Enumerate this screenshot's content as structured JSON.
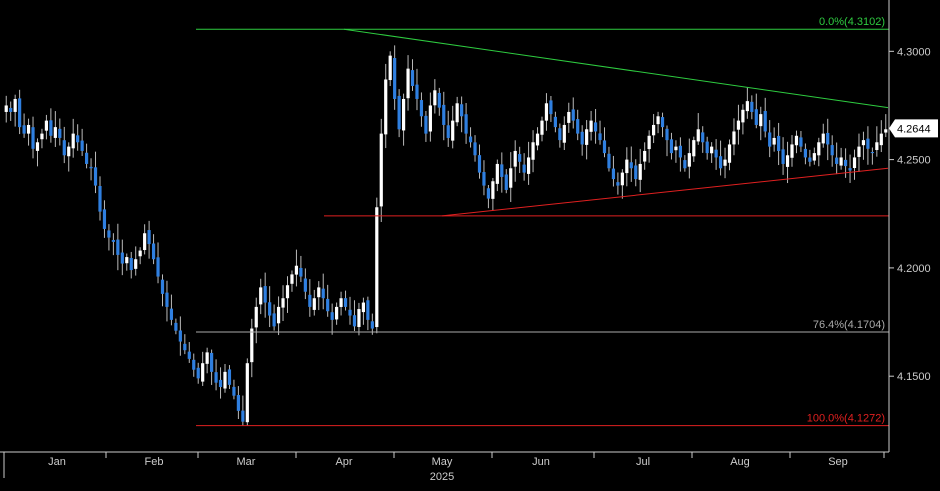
{
  "chart_data": {
    "type": "candlestick",
    "title": "",
    "xlabel": "",
    "ylabel": "",
    "year_label": "2025",
    "x_ticks": [
      "Jan",
      "Feb",
      "Mar",
      "Apr",
      "May",
      "Jun",
      "Jul",
      "Aug",
      "Sep"
    ],
    "y_ticks": [
      "4.1500",
      "4.2000",
      "4.2500",
      "4.3000"
    ],
    "ylim": [
      4.115,
      4.32
    ],
    "last_price": 4.2644,
    "last_price_label": "4.2644",
    "grid": false,
    "fib_levels": [
      {
        "label": "0.0%(4.3102)",
        "value": 4.3102,
        "color": "#2ecc40"
      },
      {
        "label": "76.4%(4.1704)",
        "value": 4.1704,
        "color": "#aaaaaa"
      },
      {
        "label": "100.0%(4.1272)",
        "value": 4.1272,
        "color": "#e02020"
      }
    ],
    "horizontal_lines": [
      {
        "value": 4.224,
        "start": "Apr",
        "color": "#e02020"
      }
    ],
    "trendlines": [
      {
        "from": [
          "Apr",
          4.3102
        ],
        "to": [
          "Sep end",
          4.274
        ],
        "color": "#2ecc40"
      },
      {
        "from": [
          "May",
          4.224
        ],
        "to": [
          "Sep end",
          4.246
        ],
        "color": "#e02020"
      }
    ],
    "colors": {
      "up": "#ffffff",
      "down": "#2f7fe0",
      "wick": "#bbbbbb",
      "background": "#000000",
      "axis": "#cccccc"
    },
    "closes": [
      4.275,
      4.272,
      4.278,
      4.265,
      4.262,
      4.266,
      4.255,
      4.258,
      4.262,
      4.268,
      4.261,
      4.265,
      4.26,
      4.252,
      4.256,
      4.262,
      4.258,
      4.254,
      4.248,
      4.246,
      4.238,
      4.226,
      4.218,
      4.214,
      4.212,
      4.206,
      4.202,
      4.205,
      4.199,
      4.204,
      4.208,
      4.216,
      4.211,
      4.204,
      4.196,
      4.188,
      4.182,
      4.176,
      4.171,
      4.166,
      4.162,
      4.158,
      4.153,
      4.149,
      4.156,
      4.161,
      4.152,
      4.147,
      4.145,
      4.152,
      4.146,
      4.141,
      4.134,
      4.129,
      4.156,
      4.172,
      4.182,
      4.191,
      4.184,
      4.178,
      4.173,
      4.182,
      4.186,
      4.192,
      4.197,
      4.201,
      4.196,
      4.189,
      4.182,
      4.186,
      4.191,
      4.186,
      4.18,
      4.176,
      4.182,
      4.186,
      4.182,
      4.178,
      4.173,
      4.181,
      4.184,
      4.176,
      4.172,
      4.228,
      4.262,
      4.287,
      4.298,
      4.278,
      4.264,
      4.278,
      4.292,
      4.284,
      4.278,
      4.27,
      4.262,
      4.275,
      4.282,
      4.274,
      4.266,
      4.26,
      4.268,
      4.276,
      4.27,
      4.262,
      4.258,
      4.252,
      4.244,
      4.238,
      4.232,
      4.24,
      4.248,
      4.242,
      4.236,
      4.246,
      4.254,
      4.249,
      4.244,
      4.251,
      4.258,
      4.262,
      4.268,
      4.276,
      4.271,
      4.265,
      4.259,
      4.266,
      4.272,
      4.268,
      4.262,
      4.257,
      4.264,
      4.268,
      4.263,
      4.259,
      4.253,
      4.246,
      4.241,
      4.238,
      4.244,
      4.25,
      4.246,
      4.241,
      4.248,
      4.254,
      4.261,
      4.266,
      4.27,
      4.265,
      4.259,
      4.253,
      4.256,
      4.251,
      4.246,
      4.253,
      4.259,
      4.264,
      4.258,
      4.253,
      4.256,
      4.251,
      4.246,
      4.25,
      4.257,
      4.263,
      4.268,
      4.273,
      4.277,
      4.272,
      4.266,
      4.271,
      4.263,
      4.256,
      4.26,
      4.254,
      4.248,
      4.252,
      4.257,
      4.261,
      4.256,
      4.251,
      4.249,
      4.253,
      4.258,
      4.262,
      4.257,
      4.252,
      4.248,
      4.251,
      4.247,
      4.245,
      4.251,
      4.256,
      4.259,
      4.255,
      4.253,
      4.258,
      4.262,
      4.264
    ]
  }
}
